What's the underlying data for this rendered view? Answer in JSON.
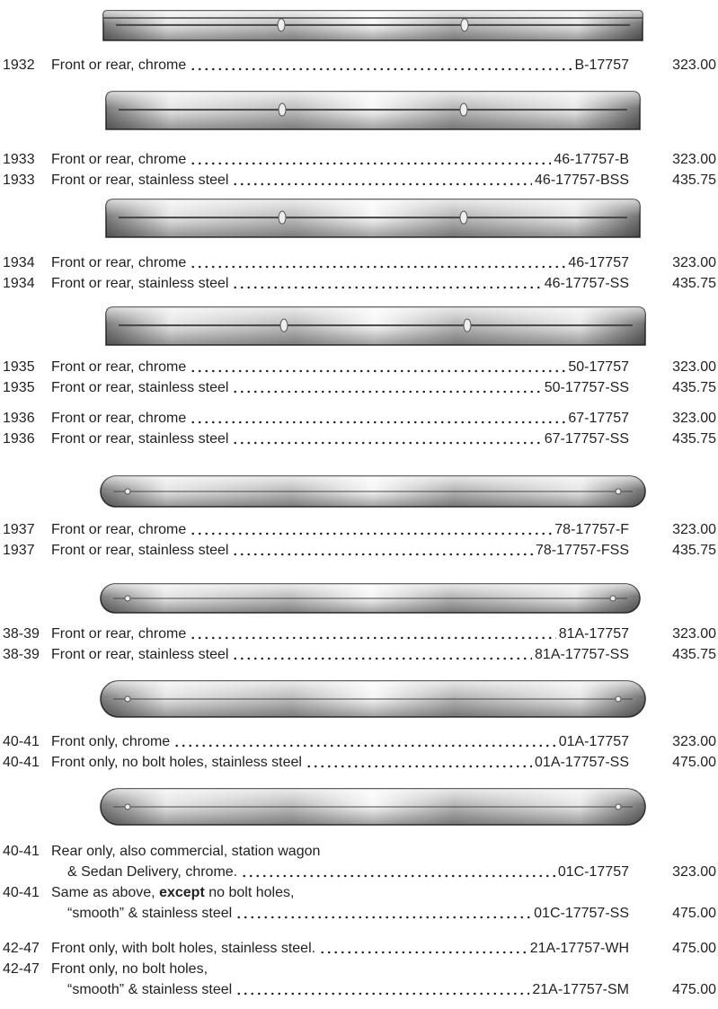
{
  "groups": [
    {
      "rows": [
        {
          "year": "1932",
          "description": "Front or rear, chrome",
          "part_number": "B-17757",
          "price": "323.00"
        }
      ]
    },
    {
      "rows": [
        {
          "year": "1933",
          "description": "Front or rear, chrome",
          "part_number": "46-17757-B",
          "price": "323.00"
        },
        {
          "year": "1933",
          "description": "Front or rear, stainless steel",
          "part_number": "46-17757-BSS",
          "price": "435.75"
        }
      ]
    },
    {
      "rows": [
        {
          "year": "1934",
          "description": "Front or rear, chrome",
          "part_number": "46-17757",
          "price": "323.00"
        },
        {
          "year": "1934",
          "description": "Front or rear, stainless steel",
          "part_number": "46-17757-SS",
          "price": "435.75"
        }
      ]
    },
    {
      "rows": [
        {
          "year": "1935",
          "description": "Front or rear, chrome",
          "part_number": "50-17757",
          "price": "323.00"
        },
        {
          "year": "1935",
          "description": "Front or rear, stainless steel",
          "part_number": "50-17757-SS",
          "price": "435.75"
        }
      ]
    },
    {
      "rows": [
        {
          "year": "1936",
          "description": "Front or rear, chrome",
          "part_number": "67-17757",
          "price": "323.00"
        },
        {
          "year": "1936",
          "description": "Front or rear, stainless steel",
          "part_number": "67-17757-SS",
          "price": "435.75"
        }
      ]
    },
    {
      "rows": [
        {
          "year": "1937",
          "description": "Front or rear, chrome",
          "part_number": "78-17757-F",
          "price": "323.00"
        },
        {
          "year": "1937",
          "description": "Front or rear, stainless steel",
          "part_number": "78-17757-FSS",
          "price": "435.75"
        }
      ]
    },
    {
      "rows": [
        {
          "year": "38-39",
          "description": "Front or rear, chrome",
          "part_number": "81A-17757",
          "price": "323.00"
        },
        {
          "year": "38-39",
          "description": "Front or rear, stainless steel",
          "part_number": "81A-17757-SS",
          "price": "435.75"
        }
      ]
    },
    {
      "rows": [
        {
          "year": "40-41",
          "description": "Front only, chrome",
          "part_number": "01A-17757",
          "price": "323.00"
        },
        {
          "year": "40-41",
          "description": "Front only, no bolt holes, stainless steel",
          "part_number": "01A-17757-SS",
          "price": "475.00"
        }
      ]
    },
    {
      "rows": [
        {
          "year": "40-41",
          "description": [
            "Rear only, also commercial, station wagon",
            "& Sedan Delivery, chrome."
          ],
          "part_number": "01C-17757",
          "price": "323.00"
        },
        {
          "year": "40-41",
          "description": [
            {
              "text": "Same as above,",
              "bold": "except",
              "rest": "no bolt holes,"
            },
            "“smooth” & stainless steel"
          ],
          "part_number": "01C-17757-SS",
          "price": "475.00"
        }
      ]
    },
    {
      "rows": [
        {
          "year": "42-47",
          "description": "Front only, with bolt holes, stainless steel.",
          "part_number": "21A-17757-WH",
          "price": "475.00"
        },
        {
          "year": "42-47",
          "description": [
            "Front only, no bolt holes,",
            "“smooth” & stainless steel"
          ],
          "part_number": "21A-17757-SM",
          "price": "475.00"
        }
      ]
    }
  ]
}
